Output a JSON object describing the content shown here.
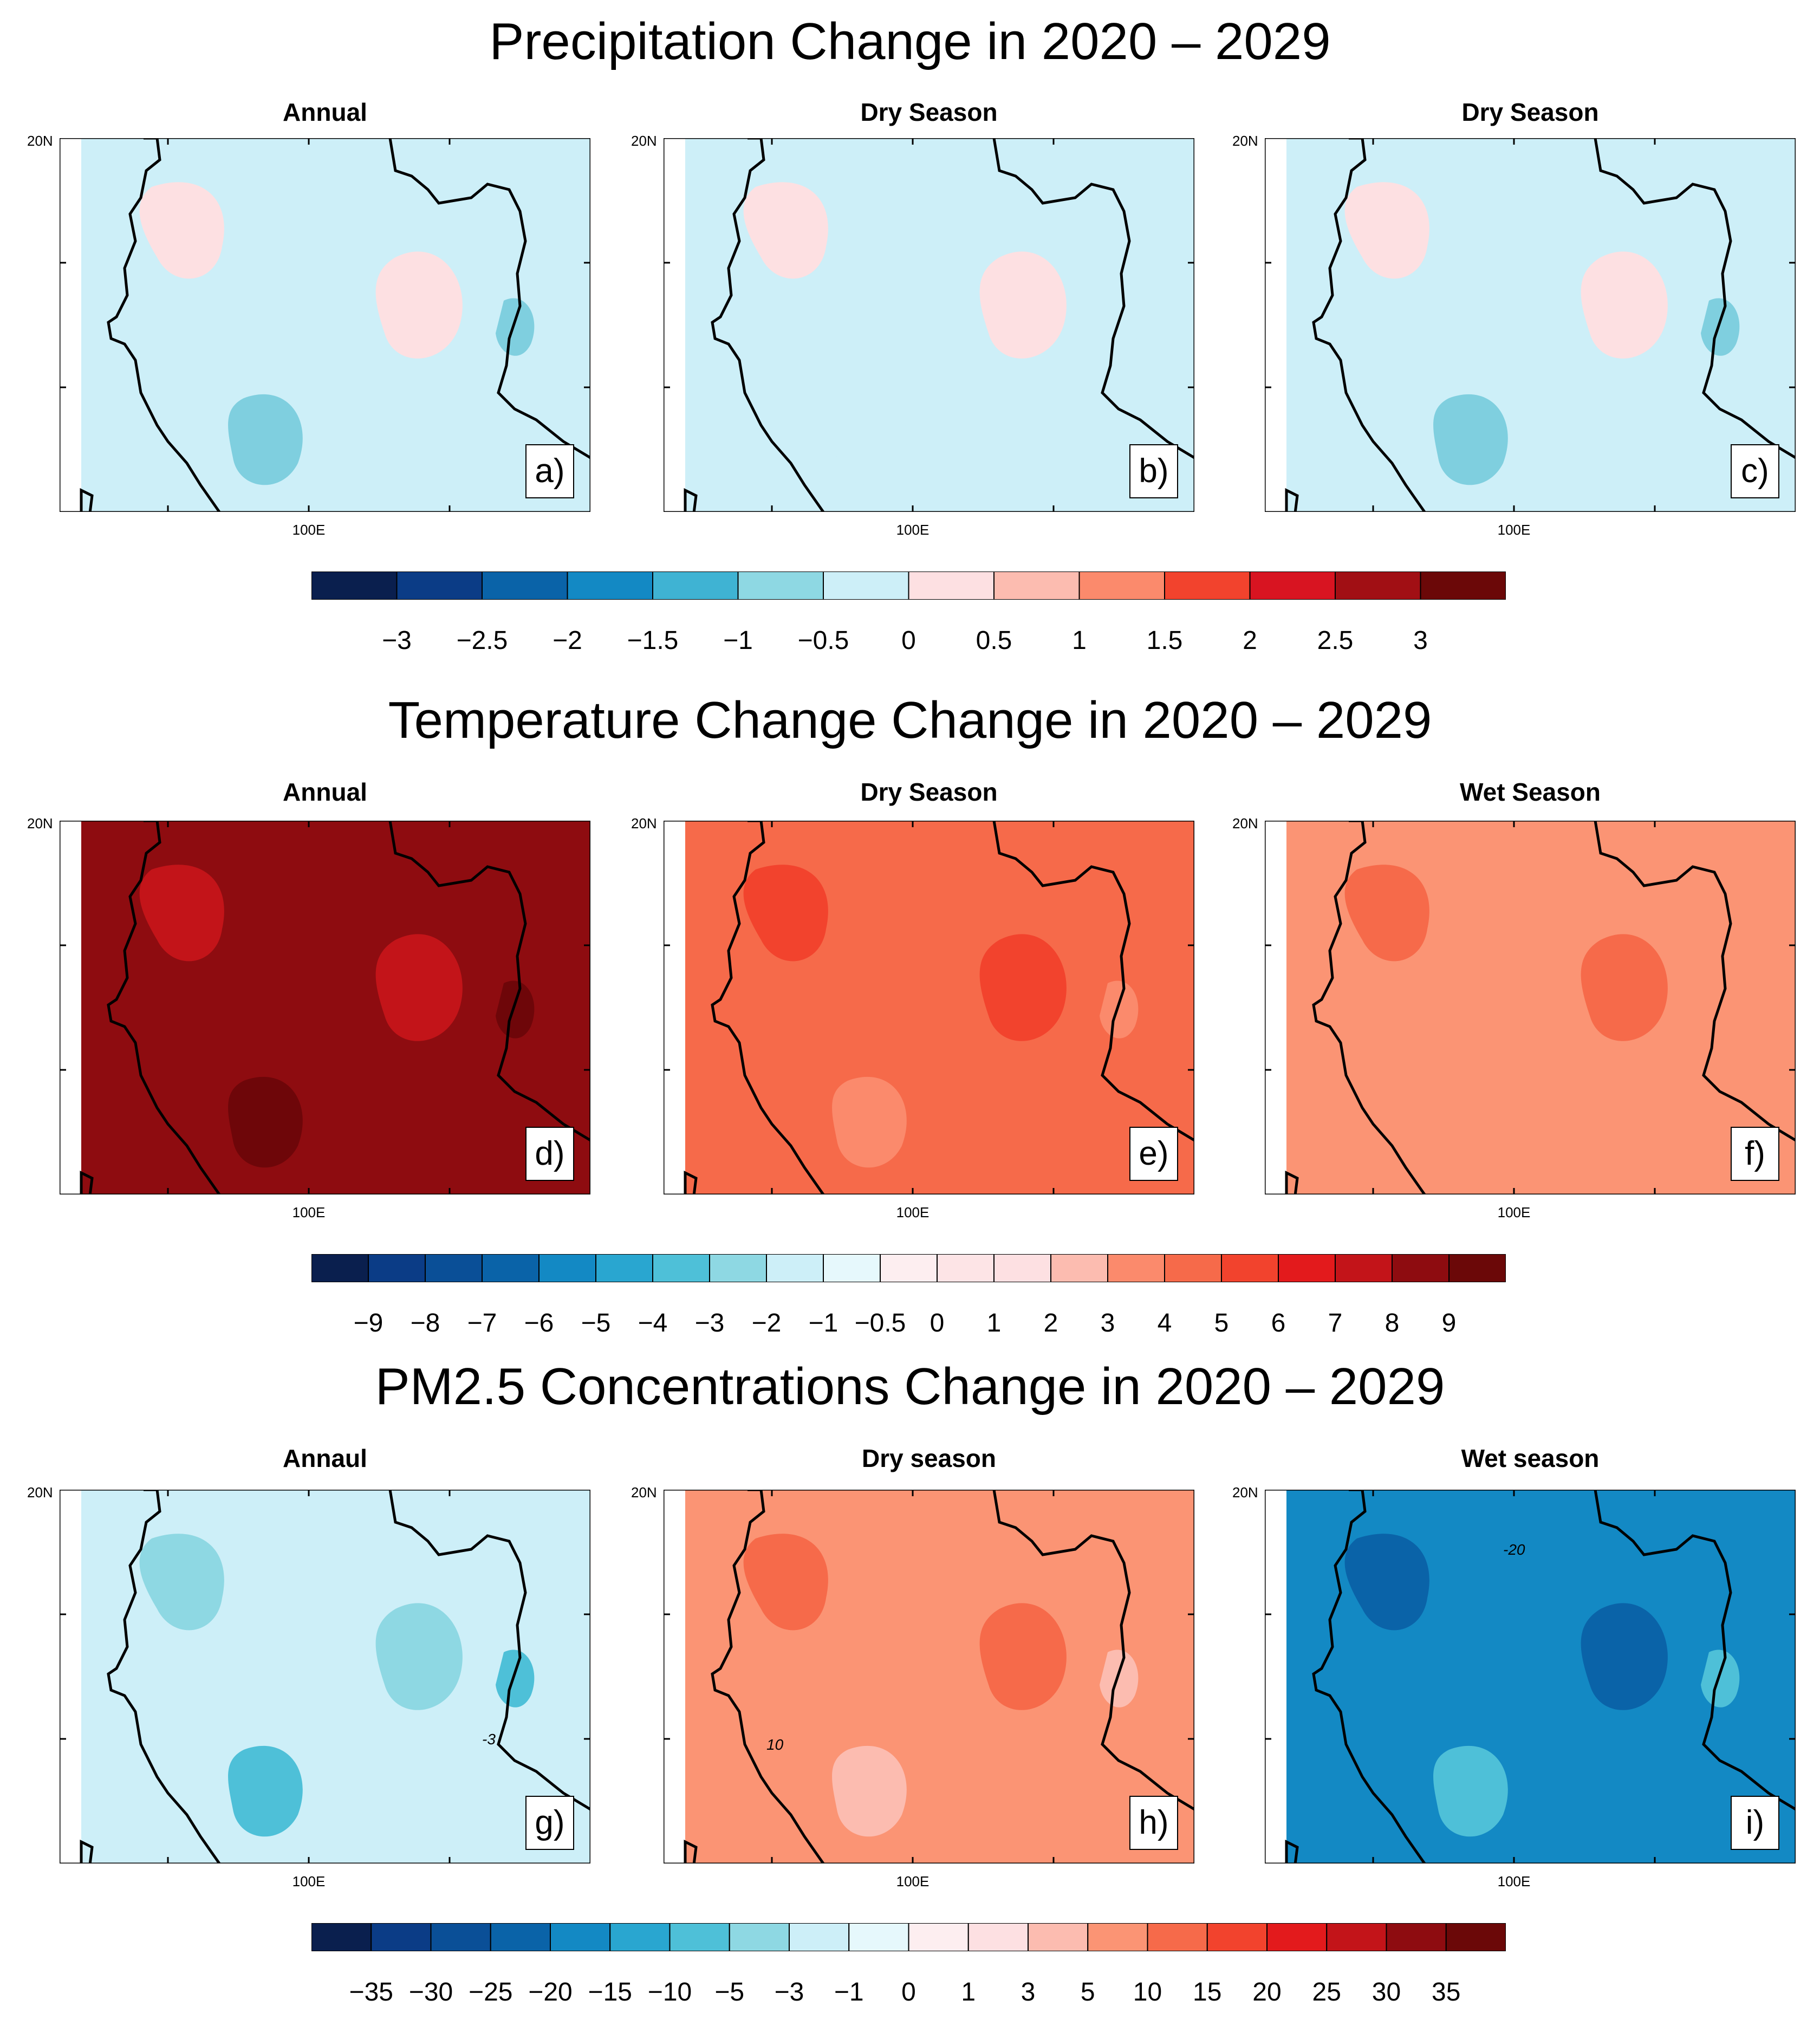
{
  "sections": [
    {
      "id": "precip",
      "title": "Precipitation Change in 2020 – 2029",
      "panels": [
        {
          "title": "Annual",
          "tag": "a)",
          "lat_label": "20N",
          "lon_label": "100E",
          "base": "#cdeff8",
          "blob": "#fde0e2",
          "blob2": "#7fcfdf"
        },
        {
          "title": "Dry Season",
          "tag": "b)",
          "lat_label": "20N",
          "lon_label": "100E",
          "base": "#cdeff8",
          "blob": "#fde0e2",
          "blob2": "#cdeff8"
        },
        {
          "title": "Dry Season",
          "tag": "c)",
          "lat_label": "20N",
          "lon_label": "100E",
          "base": "#cdeff8",
          "blob": "#fde0e2",
          "blob2": "#7fcfdf"
        }
      ],
      "colorbar": {
        "colors": [
          "#0a1f4e",
          "#0b3c86",
          "#0a63a8",
          "#1389c4",
          "#3fb3d3",
          "#8ed8e3",
          "#cdeff8",
          "#fde0e2",
          "#fcbcb0",
          "#fb8a6c",
          "#f2432d",
          "#d81421",
          "#a10f14",
          "#6b0808"
        ],
        "labels": [
          "−3",
          "−2.5",
          "−2",
          "−1.5",
          "−1",
          "−0.5",
          "0",
          "0.5",
          "1",
          "1.5",
          "2",
          "2.5",
          "3"
        ]
      }
    },
    {
      "id": "temp",
      "title": "Temperature Change Change in 2020 – 2029",
      "panels": [
        {
          "title": "Annual",
          "tag": "d)",
          "lat_label": "20N",
          "lon_label": "100E",
          "base": "#8e0c10",
          "blob": "#c31419",
          "blob2": "#6e0609"
        },
        {
          "title": "Dry Season",
          "tag": "e)",
          "lat_label": "20N",
          "lon_label": "100E",
          "base": "#f66a4a",
          "blob": "#f2432d",
          "blob2": "#fb8a6c"
        },
        {
          "title": "Wet Season",
          "tag": "f)",
          "lat_label": "20N",
          "lon_label": "100E",
          "base": "#fb9474",
          "blob": "#f66a4a",
          "blob2": "#fb9474"
        }
      ],
      "colorbar": {
        "colors": [
          "#0a1f4e",
          "#0b3c86",
          "#0a4f97",
          "#0a63a8",
          "#1389c4",
          "#29a6d0",
          "#4ec0d8",
          "#8ed8e3",
          "#cdeff8",
          "#e6f8fc",
          "#fdeef0",
          "#fde4e6",
          "#fde0e2",
          "#fcbcb0",
          "#fb8a6c",
          "#f66a4a",
          "#f2432d",
          "#e31a1c",
          "#c31419",
          "#8e0c10",
          "#6b0808"
        ],
        "labels": [
          "−9",
          "−8",
          "−7",
          "−6",
          "−5",
          "−4",
          "−3",
          "−2",
          "−1",
          "−0.5",
          "0",
          "1",
          "2",
          "3",
          "4",
          "5",
          "6",
          "7",
          "8",
          "9"
        ]
      }
    },
    {
      "id": "pm25",
      "title": "PM2.5 Concentrations Change in 2020 – 2029",
      "panels": [
        {
          "title": "Annaul",
          "tag": "g)",
          "lat_label": "20N",
          "lon_label": "100E",
          "base": "#cdeff8",
          "blob": "#8ed8e3",
          "blob2": "#4ec0d8",
          "contour": "-3"
        },
        {
          "title": "Dry season",
          "tag": "h)",
          "lat_label": "20N",
          "lon_label": "100E",
          "base": "#fb9474",
          "blob": "#f66a4a",
          "blob2": "#fcbcb0",
          "contour": "10"
        },
        {
          "title": "Wet season",
          "tag": "i)",
          "lat_label": "20N",
          "lon_label": "100E",
          "base": "#1389c4",
          "blob": "#0a63a8",
          "blob2": "#4ec0d8",
          "contour": "-20"
        }
      ],
      "colorbar": {
        "colors": [
          "#0a1f4e",
          "#0b3c86",
          "#0a4f97",
          "#0a63a8",
          "#1389c4",
          "#29a6d0",
          "#4ec0d8",
          "#8ed8e3",
          "#cdeff8",
          "#e6f8fc",
          "#fdeef0",
          "#fde0e2",
          "#fcbcb0",
          "#fb9474",
          "#f66a4a",
          "#f2432d",
          "#e31a1c",
          "#c31419",
          "#8e0c10",
          "#6b0808"
        ],
        "labels": [
          "−35",
          "−30",
          "−25",
          "−20",
          "−15",
          "−10",
          "−5",
          "−3",
          "−1",
          "0",
          "1",
          "3",
          "5",
          "10",
          "15",
          "20",
          "25",
          "30",
          "35"
        ]
      }
    }
  ],
  "chart_data": [
    {
      "type": "heatmap",
      "title": "Precipitation Change in 2020 – 2029",
      "panels": [
        "Annual",
        "Dry Season",
        "Dry Season"
      ],
      "colorbar_levels": [
        -3,
        -2.5,
        -2,
        -1.5,
        -1,
        -0.5,
        0,
        0.5,
        1,
        1.5,
        2,
        2.5,
        3
      ],
      "xlabel": "100E",
      "ylabel": "20N"
    },
    {
      "type": "heatmap",
      "title": "Temperature Change Change in 2020 – 2029",
      "panels": [
        "Annual",
        "Dry Season",
        "Wet Season"
      ],
      "colorbar_levels": [
        -9,
        -8,
        -7,
        -6,
        -5,
        -4,
        -3,
        -2,
        -1,
        -0.5,
        0,
        1,
        2,
        3,
        4,
        5,
        6,
        7,
        8,
        9
      ],
      "xlabel": "100E",
      "ylabel": "20N"
    },
    {
      "type": "heatmap",
      "title": "PM2.5 Concentrations Change in 2020 – 2029",
      "panels": [
        "Annaul",
        "Dry season",
        "Wet season"
      ],
      "colorbar_levels": [
        -35,
        -30,
        -25,
        -20,
        -15,
        -10,
        -5,
        -3,
        -1,
        0,
        1,
        3,
        5,
        10,
        15,
        20,
        25,
        30,
        35
      ],
      "contour_labels": [
        "-3",
        "10",
        "-20"
      ],
      "xlabel": "100E",
      "ylabel": "20N"
    }
  ]
}
